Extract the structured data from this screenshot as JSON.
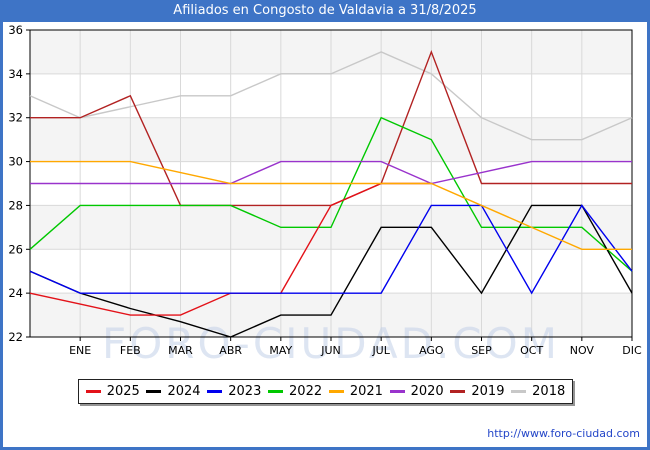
{
  "header": {
    "title": "Afiliados en Congosto de Valdavia a 31/8/2025",
    "bg_color": "#3e74c6"
  },
  "watermark": {
    "text": "FORO-CIUDAD.COM"
  },
  "footer": {
    "url": "http://www.foro-ciudad.com"
  },
  "chart_data": {
    "type": "line",
    "title": "Afiliados en Congosto de Valdavia a 31/8/2025",
    "x_labels": [
      "ENE",
      "FEB",
      "MAR",
      "ABR",
      "MAY",
      "JUN",
      "JUL",
      "AGO",
      "SEP",
      "OCT",
      "NOV",
      "DIC"
    ],
    "ylim": [
      22,
      36
    ],
    "y_ticks": [
      22,
      24,
      26,
      28,
      30,
      32,
      34,
      36
    ],
    "grid": true,
    "band_color": "#f4f4f4",
    "grid_color": "#d9d9d9",
    "note": "Each series has 13 points: index 0 is the plot left edge lead-in, indices 1-12 are ENE..DIC. 2025 data ends in AGO (31/8/2025).",
    "series": [
      {
        "name": "2025",
        "color": "#e31219",
        "values": [
          24,
          23.5,
          23,
          23,
          24,
          24,
          28,
          29,
          29,
          null,
          null,
          null,
          null
        ]
      },
      {
        "name": "2024",
        "color": "#000000",
        "values": [
          25,
          24,
          23.3,
          22.7,
          22,
          23,
          23,
          27,
          27,
          24,
          28,
          28,
          24
        ]
      },
      {
        "name": "2023",
        "color": "#0000ee",
        "values": [
          25,
          24,
          24,
          24,
          24,
          24,
          24,
          24,
          28,
          28,
          24,
          28,
          25
        ]
      },
      {
        "name": "2022",
        "color": "#00c800",
        "values": [
          26,
          28,
          28,
          28,
          28,
          27,
          27,
          32,
          31,
          27,
          27,
          27,
          25
        ]
      },
      {
        "name": "2021",
        "color": "#ffa800",
        "values": [
          30,
          30,
          30,
          29.5,
          29,
          29,
          29,
          29,
          29,
          28,
          27,
          26,
          26
        ]
      },
      {
        "name": "2020",
        "color": "#9933cc",
        "values": [
          29,
          29,
          29,
          29,
          29,
          30,
          30,
          30,
          29,
          29.5,
          30,
          30,
          30
        ]
      },
      {
        "name": "2019",
        "color": "#b22222",
        "values": [
          32,
          32,
          33,
          28,
          28,
          28,
          28,
          29,
          35,
          29,
          29,
          29,
          29
        ]
      },
      {
        "name": "2018",
        "color": "#c8c8c8",
        "values": [
          33,
          32,
          32.5,
          33,
          33,
          34,
          34,
          35,
          34,
          32,
          31,
          31,
          32
        ]
      }
    ],
    "draw_order": [
      "2018",
      "2019",
      "2022",
      "2024",
      "2025",
      "2023",
      "2020",
      "2021"
    ],
    "legend_order": [
      "2025",
      "2024",
      "2023",
      "2022",
      "2021",
      "2020",
      "2019",
      "2018"
    ]
  }
}
